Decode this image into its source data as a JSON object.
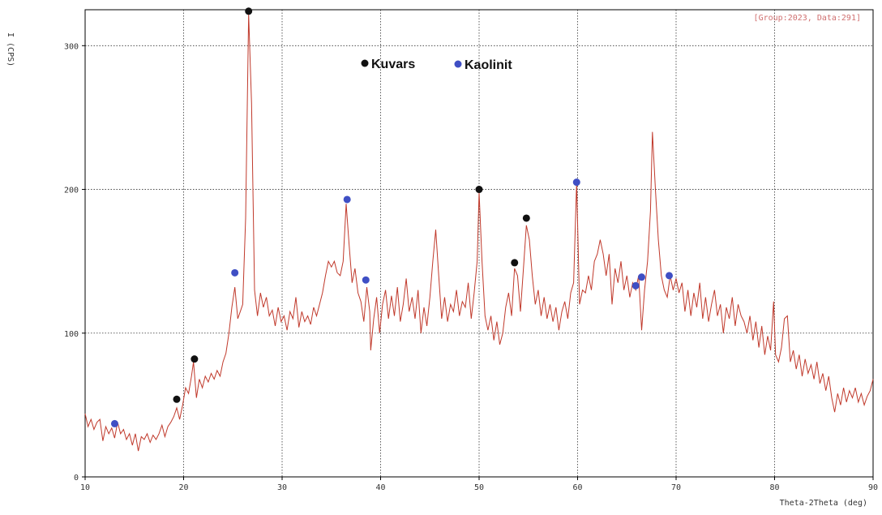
{
  "chart_data": {
    "type": "line",
    "xlabel": "Theta-2Theta (deg)",
    "ylabel": "I (CPS)",
    "info_label": "[Group:2023, Data:291]",
    "xlim": [
      10,
      90
    ],
    "ylim": [
      0,
      325
    ],
    "x_ticks": [
      10,
      20,
      30,
      40,
      50,
      60,
      70,
      80,
      90
    ],
    "y_ticks": [
      0,
      100,
      200,
      300
    ],
    "grid": true,
    "line_color": "#c0392b",
    "legend": [
      {
        "label": "Kuvars",
        "color": "#111111"
      },
      {
        "label": "Kaolinit",
        "color": "#3f4fc4"
      }
    ],
    "series": [
      {
        "points": [
          [
            10.0,
            44
          ],
          [
            10.3,
            35
          ],
          [
            10.6,
            40
          ],
          [
            10.9,
            33
          ],
          [
            11.2,
            38
          ],
          [
            11.5,
            40
          ],
          [
            11.8,
            25
          ],
          [
            12.1,
            35
          ],
          [
            12.4,
            30
          ],
          [
            12.7,
            34
          ],
          [
            13.0,
            27
          ],
          [
            13.3,
            38
          ],
          [
            13.6,
            30
          ],
          [
            13.9,
            33
          ],
          [
            14.2,
            26
          ],
          [
            14.5,
            30
          ],
          [
            14.8,
            22
          ],
          [
            15.1,
            30
          ],
          [
            15.4,
            18
          ],
          [
            15.7,
            28
          ],
          [
            16.0,
            26
          ],
          [
            16.3,
            30
          ],
          [
            16.6,
            24
          ],
          [
            16.9,
            29
          ],
          [
            17.2,
            26
          ],
          [
            17.5,
            30
          ],
          [
            17.8,
            36
          ],
          [
            18.1,
            28
          ],
          [
            18.4,
            35
          ],
          [
            18.7,
            38
          ],
          [
            19.0,
            42
          ],
          [
            19.3,
            48
          ],
          [
            19.6,
            40
          ],
          [
            19.9,
            50
          ],
          [
            20.2,
            62
          ],
          [
            20.5,
            58
          ],
          [
            20.8,
            70
          ],
          [
            21.0,
            80
          ],
          [
            21.3,
            55
          ],
          [
            21.6,
            68
          ],
          [
            21.9,
            62
          ],
          [
            22.2,
            70
          ],
          [
            22.5,
            66
          ],
          [
            22.8,
            72
          ],
          [
            23.1,
            68
          ],
          [
            23.4,
            74
          ],
          [
            23.7,
            70
          ],
          [
            24.0,
            80
          ],
          [
            24.3,
            86
          ],
          [
            24.6,
            100
          ],
          [
            24.9,
            118
          ],
          [
            25.2,
            132
          ],
          [
            25.5,
            110
          ],
          [
            25.8,
            116
          ],
          [
            26.0,
            120
          ],
          [
            26.3,
            180
          ],
          [
            26.6,
            322
          ],
          [
            26.9,
            260
          ],
          [
            27.2,
            130
          ],
          [
            27.5,
            112
          ],
          [
            27.8,
            128
          ],
          [
            28.1,
            118
          ],
          [
            28.4,
            125
          ],
          [
            28.7,
            112
          ],
          [
            29.0,
            116
          ],
          [
            29.3,
            105
          ],
          [
            29.6,
            118
          ],
          [
            29.9,
            108
          ],
          [
            30.2,
            112
          ],
          [
            30.5,
            102
          ],
          [
            30.8,
            115
          ],
          [
            31.1,
            110
          ],
          [
            31.4,
            125
          ],
          [
            31.7,
            104
          ],
          [
            32.0,
            115
          ],
          [
            32.3,
            108
          ],
          [
            32.6,
            112
          ],
          [
            32.9,
            106
          ],
          [
            33.2,
            118
          ],
          [
            33.5,
            112
          ],
          [
            33.8,
            120
          ],
          [
            34.1,
            128
          ],
          [
            34.4,
            140
          ],
          [
            34.7,
            150
          ],
          [
            35.0,
            146
          ],
          [
            35.3,
            150
          ],
          [
            35.6,
            142
          ],
          [
            35.9,
            140
          ],
          [
            36.2,
            150
          ],
          [
            36.5,
            190
          ],
          [
            36.8,
            162
          ],
          [
            37.1,
            135
          ],
          [
            37.4,
            145
          ],
          [
            37.7,
            128
          ],
          [
            38.0,
            122
          ],
          [
            38.3,
            108
          ],
          [
            38.6,
            132
          ],
          [
            38.9,
            115
          ],
          [
            39.0,
            88
          ],
          [
            39.3,
            110
          ],
          [
            39.6,
            125
          ],
          [
            39.9,
            100
          ],
          [
            40.2,
            120
          ],
          [
            40.5,
            130
          ],
          [
            40.8,
            110
          ],
          [
            41.1,
            126
          ],
          [
            41.4,
            112
          ],
          [
            41.7,
            132
          ],
          [
            42.0,
            108
          ],
          [
            42.3,
            120
          ],
          [
            42.6,
            138
          ],
          [
            42.9,
            115
          ],
          [
            43.2,
            125
          ],
          [
            43.5,
            110
          ],
          [
            43.8,
            130
          ],
          [
            44.1,
            100
          ],
          [
            44.4,
            118
          ],
          [
            44.7,
            105
          ],
          [
            45.0,
            125
          ],
          [
            45.3,
            150
          ],
          [
            45.6,
            172
          ],
          [
            45.9,
            140
          ],
          [
            46.2,
            110
          ],
          [
            46.5,
            125
          ],
          [
            46.8,
            108
          ],
          [
            47.1,
            120
          ],
          [
            47.4,
            115
          ],
          [
            47.7,
            130
          ],
          [
            48.0,
            112
          ],
          [
            48.3,
            122
          ],
          [
            48.6,
            118
          ],
          [
            48.9,
            135
          ],
          [
            49.2,
            110
          ],
          [
            49.5,
            128
          ],
          [
            49.8,
            150
          ],
          [
            50.0,
            198
          ],
          [
            50.3,
            150
          ],
          [
            50.6,
            112
          ],
          [
            50.9,
            102
          ],
          [
            51.2,
            112
          ],
          [
            51.5,
            95
          ],
          [
            51.8,
            108
          ],
          [
            52.1,
            92
          ],
          [
            52.4,
            100
          ],
          [
            52.7,
            118
          ],
          [
            53.0,
            128
          ],
          [
            53.3,
            112
          ],
          [
            53.6,
            145
          ],
          [
            53.9,
            140
          ],
          [
            54.2,
            115
          ],
          [
            54.5,
            145
          ],
          [
            54.8,
            175
          ],
          [
            55.1,
            165
          ],
          [
            55.4,
            140
          ],
          [
            55.7,
            120
          ],
          [
            56.0,
            130
          ],
          [
            56.3,
            112
          ],
          [
            56.6,
            125
          ],
          [
            56.9,
            110
          ],
          [
            57.2,
            120
          ],
          [
            57.5,
            108
          ],
          [
            57.8,
            118
          ],
          [
            58.1,
            102
          ],
          [
            58.4,
            115
          ],
          [
            58.7,
            122
          ],
          [
            59.0,
            110
          ],
          [
            59.3,
            128
          ],
          [
            59.6,
            135
          ],
          [
            59.9,
            205
          ],
          [
            60.2,
            120
          ],
          [
            60.5,
            130
          ],
          [
            60.8,
            128
          ],
          [
            61.1,
            140
          ],
          [
            61.4,
            130
          ],
          [
            61.7,
            150
          ],
          [
            62.0,
            155
          ],
          [
            62.3,
            165
          ],
          [
            62.6,
            155
          ],
          [
            62.9,
            140
          ],
          [
            63.2,
            155
          ],
          [
            63.5,
            120
          ],
          [
            63.8,
            145
          ],
          [
            64.1,
            135
          ],
          [
            64.4,
            150
          ],
          [
            64.7,
            130
          ],
          [
            65.0,
            140
          ],
          [
            65.3,
            125
          ],
          [
            65.6,
            135
          ],
          [
            65.9,
            130
          ],
          [
            66.2,
            140
          ],
          [
            66.5,
            102
          ],
          [
            66.8,
            130
          ],
          [
            67.1,
            150
          ],
          [
            67.4,
            185
          ],
          [
            67.6,
            240
          ],
          [
            67.9,
            200
          ],
          [
            68.2,
            165
          ],
          [
            68.5,
            140
          ],
          [
            68.8,
            130
          ],
          [
            69.1,
            125
          ],
          [
            69.4,
            140
          ],
          [
            69.7,
            130
          ],
          [
            70.0,
            138
          ],
          [
            70.3,
            128
          ],
          [
            70.6,
            135
          ],
          [
            70.9,
            115
          ],
          [
            71.2,
            130
          ],
          [
            71.5,
            112
          ],
          [
            71.8,
            128
          ],
          [
            72.1,
            118
          ],
          [
            72.4,
            135
          ],
          [
            72.7,
            110
          ],
          [
            73.0,
            125
          ],
          [
            73.3,
            108
          ],
          [
            73.6,
            120
          ],
          [
            73.9,
            130
          ],
          [
            74.2,
            112
          ],
          [
            74.5,
            120
          ],
          [
            74.8,
            100
          ],
          [
            75.1,
            118
          ],
          [
            75.4,
            110
          ],
          [
            75.7,
            125
          ],
          [
            76.0,
            105
          ],
          [
            76.3,
            120
          ],
          [
            76.6,
            112
          ],
          [
            76.9,
            108
          ],
          [
            77.2,
            100
          ],
          [
            77.5,
            112
          ],
          [
            77.8,
            95
          ],
          [
            78.1,
            108
          ],
          [
            78.4,
            90
          ],
          [
            78.7,
            105
          ],
          [
            79.0,
            85
          ],
          [
            79.3,
            98
          ],
          [
            79.6,
            88
          ],
          [
            79.9,
            122
          ],
          [
            80.1,
            85
          ],
          [
            80.4,
            80
          ],
          [
            80.7,
            90
          ],
          [
            81.0,
            110
          ],
          [
            81.3,
            112
          ],
          [
            81.6,
            80
          ],
          [
            81.9,
            88
          ],
          [
            82.2,
            75
          ],
          [
            82.5,
            85
          ],
          [
            82.8,
            70
          ],
          [
            83.1,
            82
          ],
          [
            83.4,
            72
          ],
          [
            83.7,
            78
          ],
          [
            84.0,
            68
          ],
          [
            84.3,
            80
          ],
          [
            84.6,
            65
          ],
          [
            84.9,
            72
          ],
          [
            85.2,
            60
          ],
          [
            85.5,
            70
          ],
          [
            85.8,
            55
          ],
          [
            86.1,
            45
          ],
          [
            86.4,
            58
          ],
          [
            86.7,
            50
          ],
          [
            87.0,
            62
          ],
          [
            87.3,
            52
          ],
          [
            87.6,
            60
          ],
          [
            87.9,
            55
          ],
          [
            88.2,
            62
          ],
          [
            88.5,
            52
          ],
          [
            88.8,
            58
          ],
          [
            89.1,
            50
          ],
          [
            89.4,
            56
          ],
          [
            89.7,
            60
          ],
          [
            90.0,
            68
          ]
        ]
      }
    ],
    "markers": [
      {
        "type": "Kuvars",
        "x": 26.6,
        "y": 324
      },
      {
        "type": "Kuvars",
        "x": 19.3,
        "y": 54
      },
      {
        "type": "Kuvars",
        "x": 21.1,
        "y": 82
      },
      {
        "type": "Kuvars",
        "x": 50.0,
        "y": 200
      },
      {
        "type": "Kuvars",
        "x": 53.6,
        "y": 149
      },
      {
        "type": "Kuvars",
        "x": 54.8,
        "y": 180
      },
      {
        "type": "Kaolinit",
        "x": 13.0,
        "y": 37
      },
      {
        "type": "Kaolinit",
        "x": 25.2,
        "y": 142
      },
      {
        "type": "Kaolinit",
        "x": 36.6,
        "y": 193
      },
      {
        "type": "Kaolinit",
        "x": 38.5,
        "y": 137
      },
      {
        "type": "Kaolinit",
        "x": 59.9,
        "y": 205
      },
      {
        "type": "Kaolinit",
        "x": 65.9,
        "y": 133
      },
      {
        "type": "Kaolinit",
        "x": 66.5,
        "y": 139
      },
      {
        "type": "Kaolinit",
        "x": 69.3,
        "y": 140
      }
    ]
  }
}
